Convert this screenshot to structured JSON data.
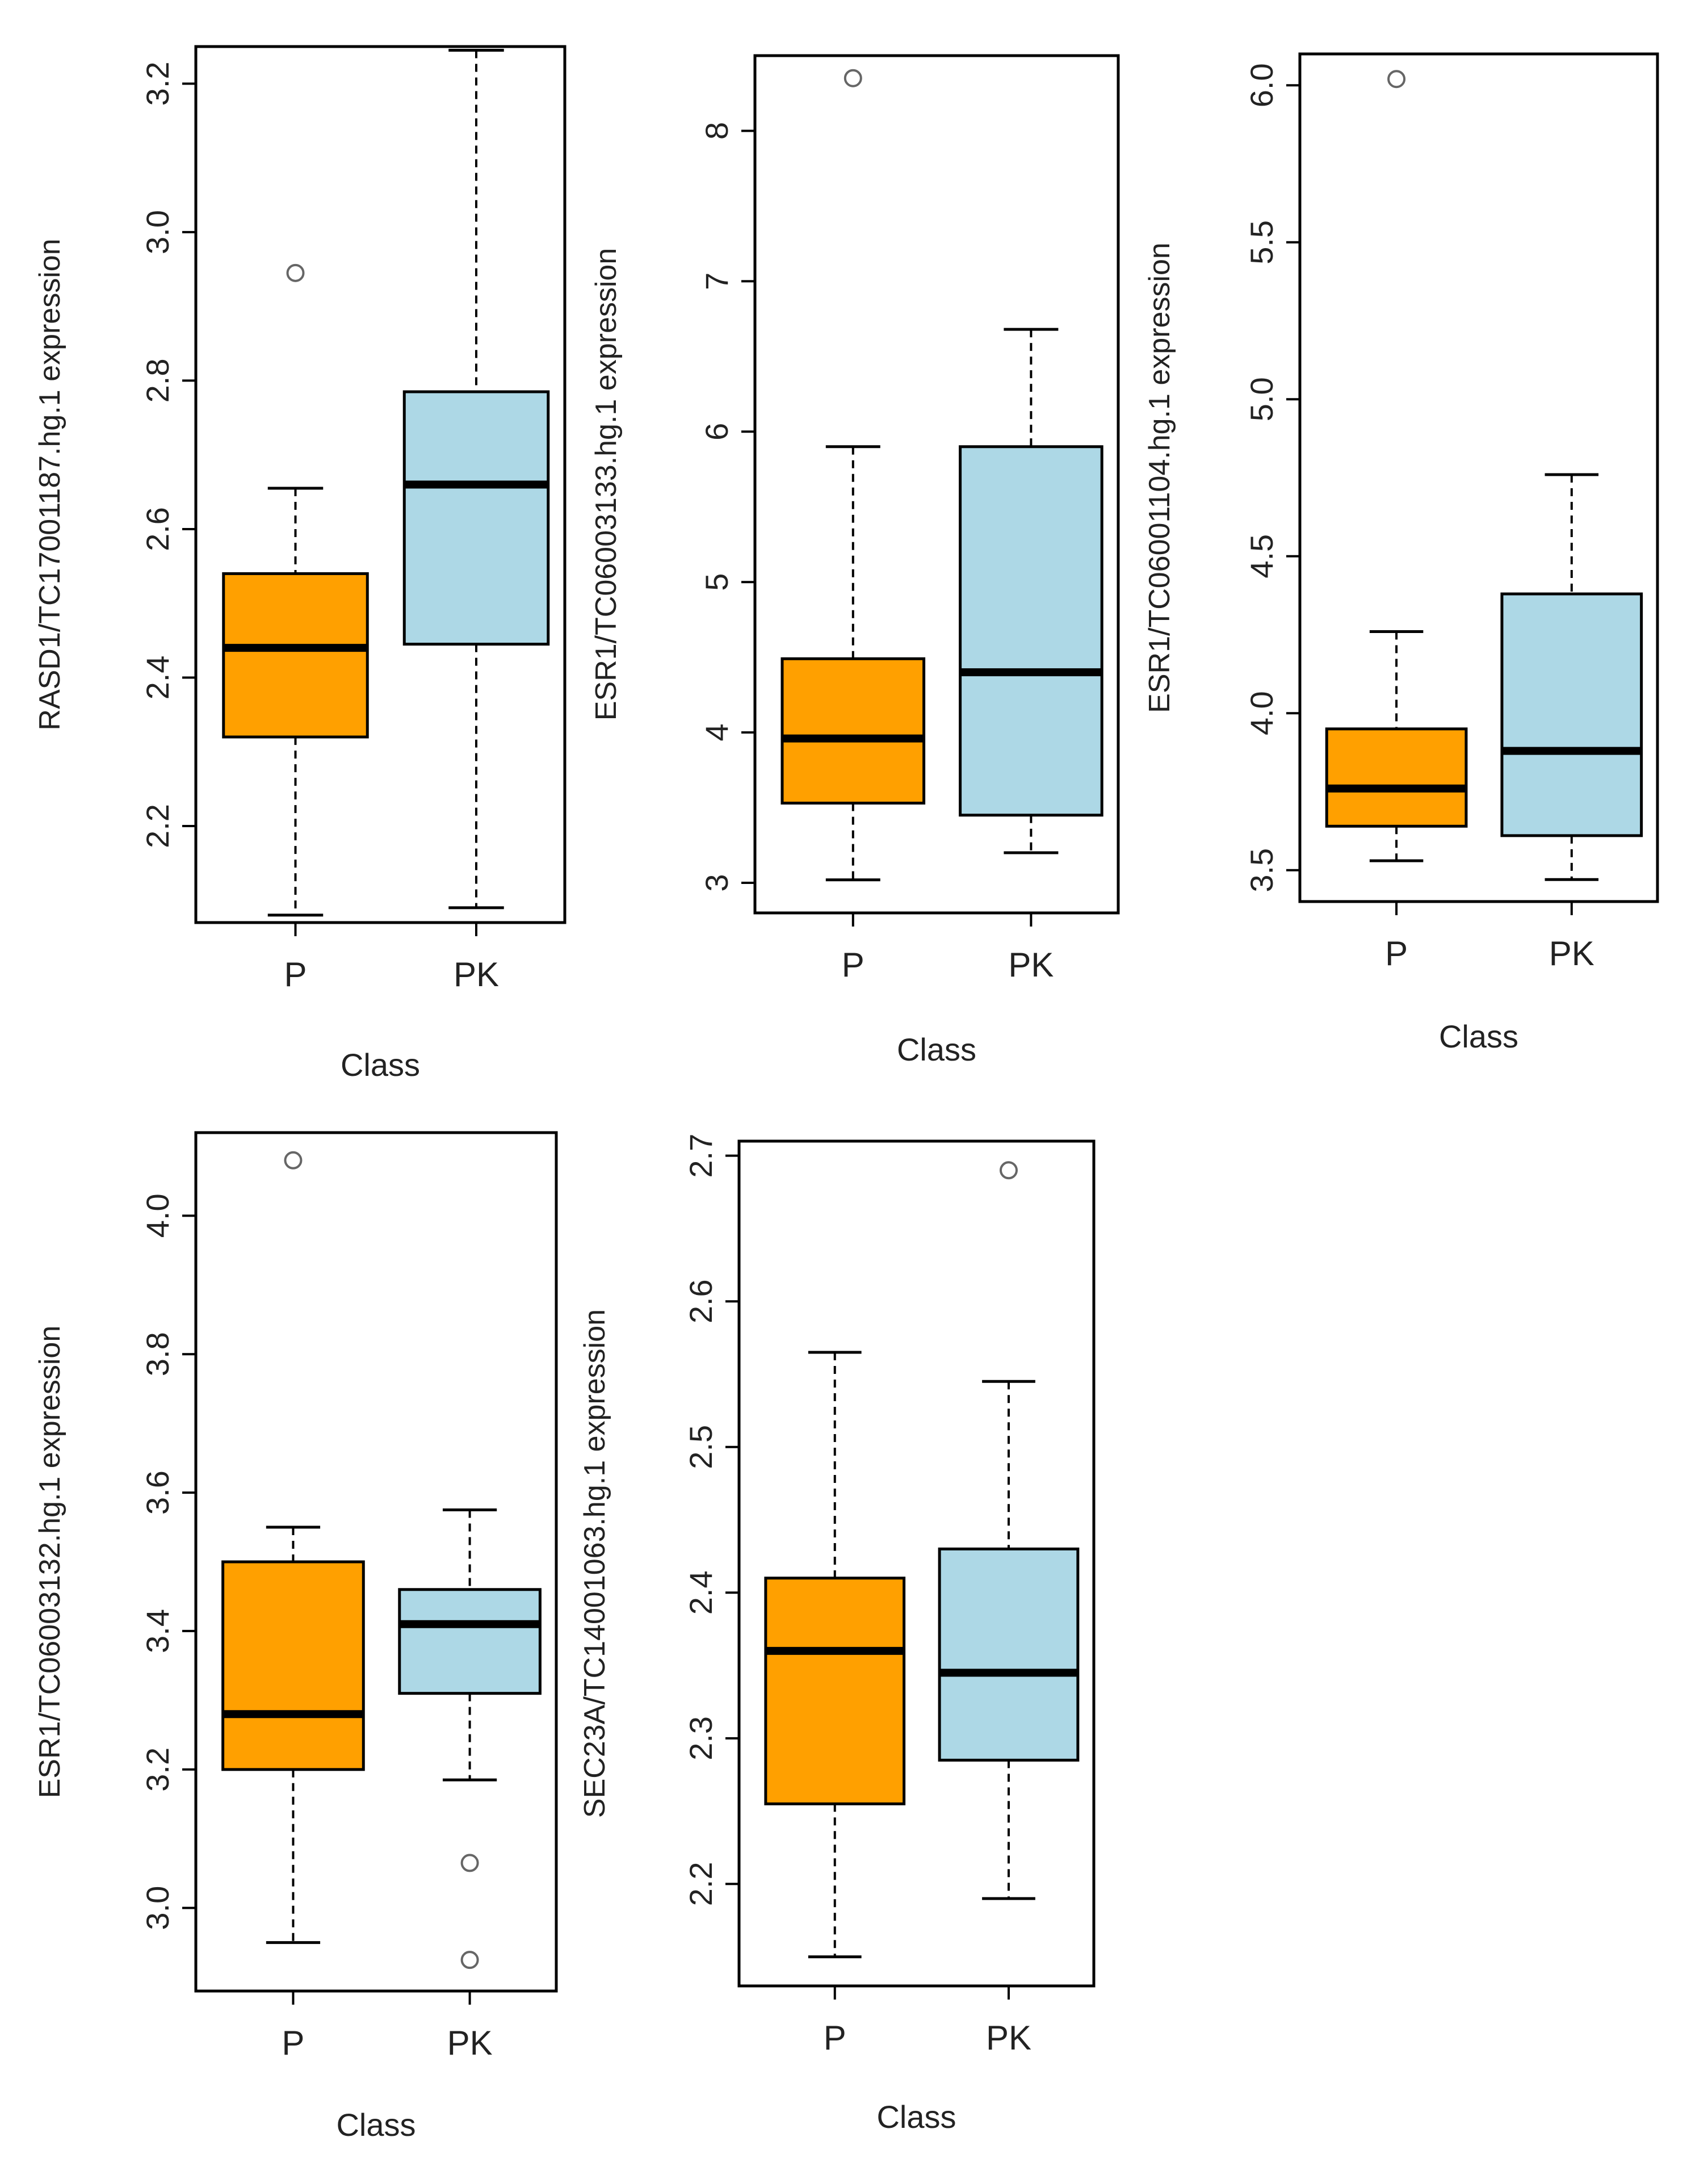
{
  "figure": {
    "colors": {
      "P": "#ffa000",
      "PK": "#add8e6",
      "line": "#000000",
      "text": "#222222",
      "outlier": "#666666"
    }
  },
  "chart_data": [
    {
      "type": "box",
      "title": "",
      "xlabel": "Class",
      "ylabel": "RASD1/TC17001187.hg.1 expression",
      "categories": [
        "P",
        "PK"
      ],
      "ylim": [
        2.07,
        3.25
      ],
      "yticks": [
        "2.2",
        "2.4",
        "2.6",
        "2.8",
        "3.0",
        "3.2"
      ],
      "boxes": [
        {
          "category": "P",
          "whisker_low": 2.08,
          "q1": 2.32,
          "median": 2.44,
          "q3": 2.54,
          "whisker_high": 2.655,
          "outliers": [
            2.945
          ]
        },
        {
          "category": "PK",
          "whisker_low": 2.09,
          "q1": 2.445,
          "median": 2.66,
          "q3": 2.785,
          "whisker_high": 3.245,
          "outliers": []
        }
      ]
    },
    {
      "type": "box",
      "title": "",
      "xlabel": "Class",
      "ylabel": "ESR1/TC06003133.hg.1 expression",
      "categories": [
        "P",
        "PK"
      ],
      "ylim": [
        2.8,
        8.5
      ],
      "yticks": [
        "3",
        "4",
        "5",
        "6",
        "7",
        "8"
      ],
      "boxes": [
        {
          "category": "P",
          "whisker_low": 3.02,
          "q1": 3.53,
          "median": 3.96,
          "q3": 4.49,
          "whisker_high": 5.9,
          "outliers": [
            8.35
          ]
        },
        {
          "category": "PK",
          "whisker_low": 3.2,
          "q1": 3.45,
          "median": 4.4,
          "q3": 5.9,
          "whisker_high": 6.68,
          "outliers": []
        }
      ]
    },
    {
      "type": "box",
      "title": "",
      "xlabel": "Class",
      "ylabel": "ESR1/TC06001104.hg.1 expression",
      "categories": [
        "P",
        "PK"
      ],
      "ylim": [
        3.4,
        6.1
      ],
      "yticks": [
        "3.5",
        "4.0",
        "4.5",
        "5.0",
        "5.5",
        "6.0"
      ],
      "boxes": [
        {
          "category": "P",
          "whisker_low": 3.53,
          "q1": 3.64,
          "median": 3.76,
          "q3": 3.95,
          "whisker_high": 4.26,
          "outliers": [
            6.02
          ]
        },
        {
          "category": "PK",
          "whisker_low": 3.47,
          "q1": 3.61,
          "median": 3.88,
          "q3": 4.38,
          "whisker_high": 4.76,
          "outliers": []
        }
      ]
    },
    {
      "type": "box",
      "title": "",
      "xlabel": "Class",
      "ylabel": "ESR1/TC06003132.hg.1 expression",
      "categories": [
        "P",
        "PK"
      ],
      "ylim": [
        2.88,
        4.12
      ],
      "yticks": [
        "3.0",
        "3.2",
        "3.4",
        "3.6",
        "3.8",
        "4.0"
      ],
      "boxes": [
        {
          "category": "P",
          "whisker_low": 2.95,
          "q1": 3.2,
          "median": 3.28,
          "q3": 3.5,
          "whisker_high": 3.55,
          "outliers": [
            4.08
          ]
        },
        {
          "category": "PK",
          "whisker_low": 3.185,
          "q1": 3.31,
          "median": 3.41,
          "q3": 3.46,
          "whisker_high": 3.575,
          "outliers": [
            3.065,
            2.925
          ]
        }
      ]
    },
    {
      "type": "box",
      "title": "",
      "xlabel": "Class",
      "ylabel": "SEC23A/TC14001063.hg.1 expression",
      "categories": [
        "P",
        "PK"
      ],
      "ylim": [
        2.13,
        2.71
      ],
      "yticks": [
        "2.2",
        "2.3",
        "2.4",
        "2.5",
        "2.6",
        "2.7"
      ],
      "boxes": [
        {
          "category": "P",
          "whisker_low": 2.15,
          "q1": 2.255,
          "median": 2.36,
          "q3": 2.41,
          "whisker_high": 2.565,
          "outliers": []
        },
        {
          "category": "PK",
          "whisker_low": 2.19,
          "q1": 2.285,
          "median": 2.345,
          "q3": 2.43,
          "whisker_high": 2.545,
          "outliers": [
            2.69
          ]
        }
      ]
    }
  ]
}
